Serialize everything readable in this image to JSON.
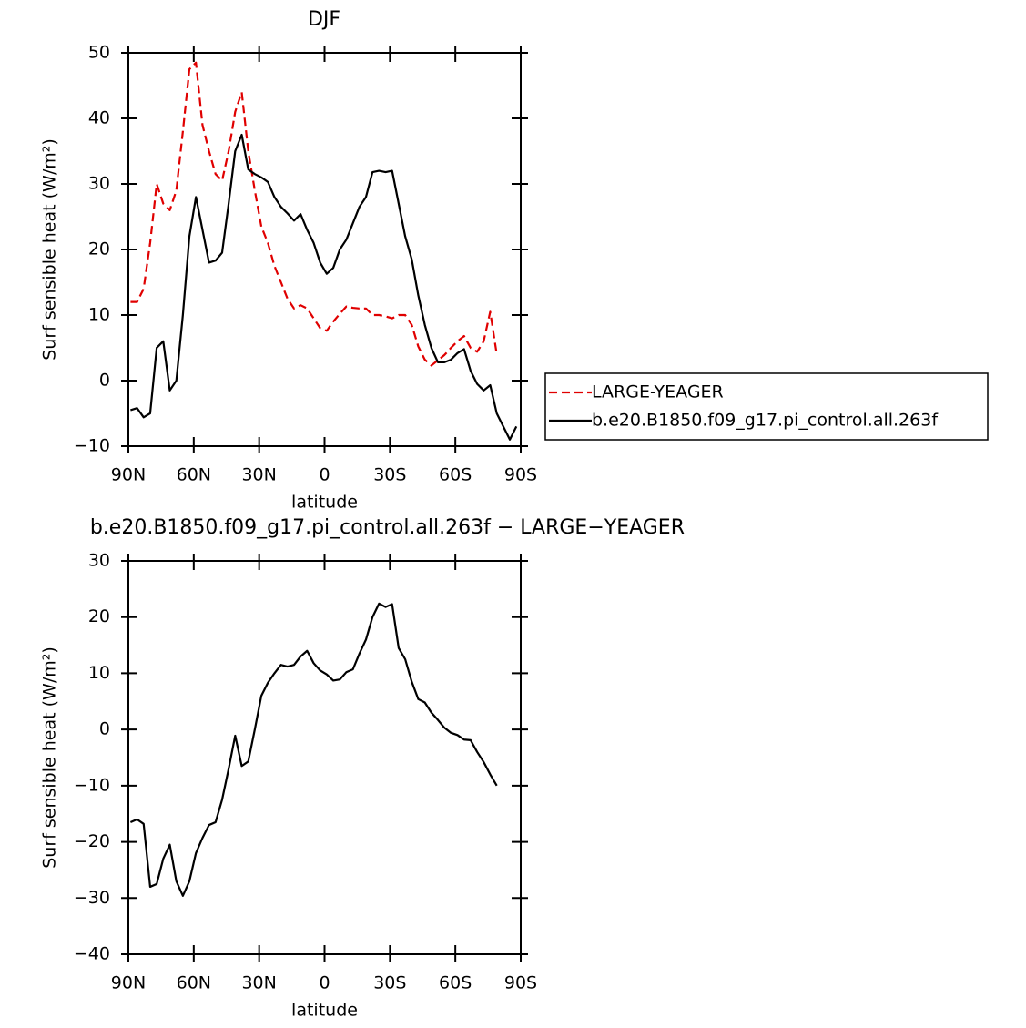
{
  "chart_data": [
    {
      "type": "line",
      "title": "DJF",
      "xlabel": "latitude",
      "ylabel": "Surf sensible heat (W/m²)",
      "x": [
        89,
        86,
        83,
        80,
        77,
        74,
        71,
        68,
        65,
        62,
        59,
        56,
        53,
        50,
        47,
        44,
        41,
        38,
        35,
        32,
        29,
        26,
        23,
        20,
        17,
        14,
        11,
        8,
        5,
        2,
        -1,
        -4,
        -7,
        -10,
        -13,
        -16,
        -19,
        -22,
        -25,
        -28,
        -31,
        -34,
        -37,
        -40,
        -43,
        -46,
        -49,
        -52,
        -55,
        -58,
        -61,
        -64,
        -67,
        -70,
        -73,
        -76,
        -79,
        -82,
        -85,
        -88
      ],
      "series": [
        {
          "name": "LARGE-YEAGER",
          "color": "#e00000",
          "line_style": "dashed",
          "values": [
            12,
            12,
            14,
            21,
            30,
            27,
            26,
            29,
            38,
            47.5,
            48.5,
            39,
            35,
            31.5,
            30.5,
            35,
            41,
            44,
            35,
            29,
            23.5,
            21,
            17.5,
            15,
            12.5,
            11,
            11.5,
            11,
            9.5,
            8,
            7.6,
            9,
            10.2,
            11.3,
            11.1,
            11,
            11,
            10,
            10,
            9.8,
            9.5,
            10,
            10,
            8.5,
            5.2,
            3.2,
            2.3,
            3.1,
            3.9,
            5,
            6,
            6.8,
            5,
            4.4,
            6,
            10.5,
            4,
            null,
            null,
            null
          ]
        },
        {
          "name": "b.e20.B1850.f09_g17.pi_control.all.263f",
          "color": "#000000",
          "line_style": "solid",
          "values": [
            -4.5,
            -4.2,
            -5.6,
            -5,
            5,
            6,
            -1.5,
            0,
            10,
            22,
            28,
            23,
            18,
            18.3,
            19.5,
            27,
            35,
            37.5,
            32.2,
            31.5,
            31,
            30.3,
            28,
            26.5,
            25.5,
            24.4,
            25.4,
            23,
            21,
            18,
            16.3,
            17.2,
            20,
            21.5,
            24,
            26.5,
            28,
            31.8,
            32,
            31.8,
            32,
            27,
            22,
            18.5,
            13,
            8.5,
            5,
            2.8,
            2.8,
            3.2,
            4.2,
            4.8,
            1.5,
            -0.5,
            -1.5,
            -0.7,
            -5,
            -7,
            -9,
            -7
          ]
        }
      ],
      "xlim": [
        90,
        -90
      ],
      "xticks": [
        {
          "value": 90,
          "label": "90N"
        },
        {
          "value": 60,
          "label": "60N"
        },
        {
          "value": 30,
          "label": "30N"
        },
        0,
        {
          "value": -30,
          "label": "30S"
        },
        {
          "value": -60,
          "label": "60S"
        },
        {
          "value": -90,
          "label": "90S"
        }
      ],
      "ylim": [
        -10,
        50
      ],
      "yticks": [
        {
          "value": -10,
          "label": "−10"
        },
        0,
        10,
        20,
        30,
        40,
        50
      ],
      "grid": false,
      "legend": "right"
    },
    {
      "type": "line",
      "title": "b.e20.B1850.f09_g17.pi_control.all.263f − LARGE−YEAGER",
      "xlabel": "latitude",
      "ylabel": "Surf sensible heat (W/m²)",
      "x": [
        89,
        86,
        83,
        80,
        77,
        74,
        71,
        68,
        65,
        62,
        59,
        56,
        53,
        50,
        47,
        44,
        41,
        38,
        35,
        32,
        29,
        26,
        23,
        20,
        17,
        14,
        11,
        8,
        5,
        2,
        -1,
        -4,
        -7,
        -10,
        -13,
        -16,
        -19,
        -22,
        -25,
        -28,
        -31,
        -34,
        -37,
        -40,
        -43,
        -46,
        -49,
        -52,
        -55,
        -58,
        -61,
        -64,
        -67,
        -70,
        -73,
        -76,
        -79,
        -82,
        -85,
        -88
      ],
      "series": [
        {
          "color": "#000000",
          "line_style": "solid",
          "values": [
            -16.5,
            -16,
            -16.8,
            -28,
            -27.5,
            -23,
            -20.5,
            -27,
            -29.6,
            -27,
            -22,
            -19.3,
            -17,
            -16.5,
            -12.5,
            -7,
            -1.1,
            -6.5,
            -5.7,
            0,
            6,
            8.3,
            10,
            11.5,
            11.2,
            11.5,
            13,
            14,
            11.8,
            10.5,
            9.8,
            8.7,
            8.9,
            10.2,
            10.7,
            13.5,
            16,
            20,
            22.4,
            21.8,
            22.3,
            14.5,
            12.5,
            8.5,
            5.4,
            4.8,
            3,
            1.7,
            0.3,
            -0.6,
            -1,
            -1.8,
            -1.9,
            -4,
            -5.8,
            -8,
            -10,
            null,
            null,
            null
          ]
        }
      ],
      "xlim": [
        90,
        -90
      ],
      "xticks": [
        {
          "value": 90,
          "label": "90N"
        },
        {
          "value": 60,
          "label": "60N"
        },
        {
          "value": 30,
          "label": "30N"
        },
        0,
        {
          "value": -30,
          "label": "30S"
        },
        {
          "value": -60,
          "label": "60S"
        },
        {
          "value": -90,
          "label": "90S"
        }
      ],
      "ylim": [
        -40,
        30
      ],
      "yticks": [
        {
          "value": -40,
          "label": "−40"
        },
        {
          "value": -30,
          "label": "−30"
        },
        {
          "value": -20,
          "label": "−20"
        },
        {
          "value": -10,
          "label": "−10"
        },
        0,
        10,
        20,
        30
      ],
      "grid": false
    }
  ]
}
